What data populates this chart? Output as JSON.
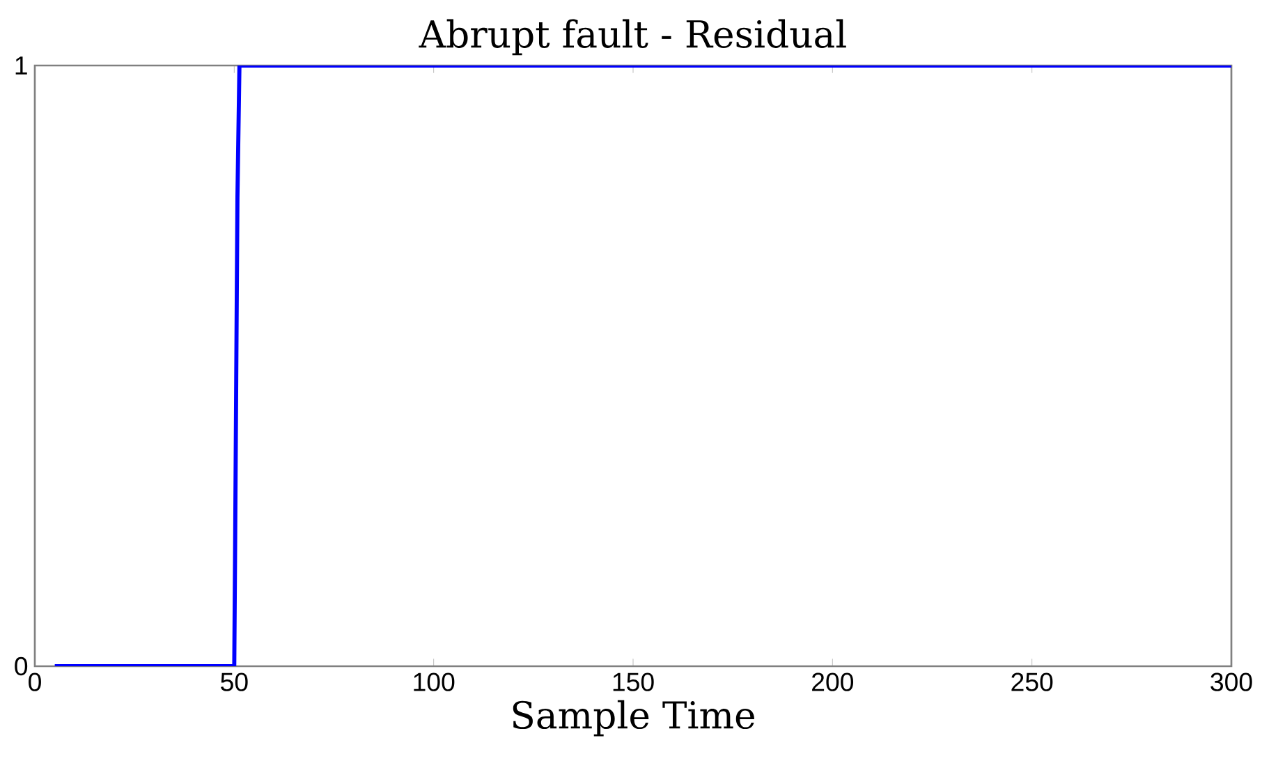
{
  "chart_data": {
    "type": "line",
    "title": "Abrupt fault - Residual",
    "xlabel": "Sample Time",
    "series": [
      {
        "color": "#0000ff",
        "x": [
          5,
          50,
          50.2,
          50.5,
          50.8,
          51.3,
          300
        ],
        "values": [
          0,
          0,
          0.18,
          0.48,
          0.78,
          1,
          1
        ]
      }
    ],
    "xlim": [
      0,
      300
    ],
    "xticks": [
      0,
      50,
      100,
      150,
      200,
      250,
      300
    ],
    "ylim": [
      0,
      1
    ],
    "yticks": [
      0,
      1
    ],
    "marker": "none",
    "line_style": "solid"
  }
}
